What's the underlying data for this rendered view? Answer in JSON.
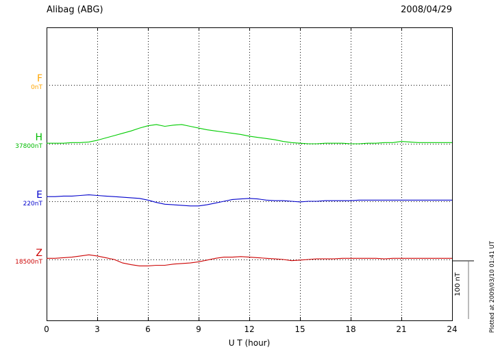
{
  "header": {
    "title": "Alibag (ABG)",
    "date": "2008/04/29"
  },
  "axes": {
    "x_label": "U T (hour)",
    "x_ticks": [
      "0",
      "3",
      "6",
      "9",
      "12",
      "15",
      "18",
      "21",
      "24"
    ]
  },
  "series": [
    {
      "key": "F",
      "label": "F",
      "baseline_label": "0nT",
      "color": "#ffa500"
    },
    {
      "key": "H",
      "label": "H",
      "baseline_label": "37800nT",
      "color": "#00cc00"
    },
    {
      "key": "E",
      "label": "E",
      "baseline_label": "220nT",
      "color": "#0000cc"
    },
    {
      "key": "Z",
      "label": "Z",
      "baseline_label": "18500nT",
      "color": "#cc0000"
    }
  ],
  "scale_bar": {
    "label": "100 nT",
    "value_nT": 100
  },
  "footer": {
    "plotted_at": "Plotted at 2009/03/10 01:41 UT"
  },
  "chart_data": {
    "type": "line",
    "title": "Alibag (ABG) magnetogram",
    "date": "2008/04/29",
    "xlabel": "U T (hour)",
    "x_range": [
      0,
      24
    ],
    "x_tick_interval_hours": 3,
    "x_step_hours": 0.5,
    "grid": "dotted",
    "scale_bar_nT": 100,
    "series": [
      {
        "name": "F",
        "baseline": "0nT",
        "color": "#ffa500",
        "offsets_nT": []
      },
      {
        "name": "H",
        "baseline": "37800nT",
        "color": "#00cc00",
        "offsets_nT": [
          1,
          1,
          1,
          2,
          2,
          3,
          6,
          10,
          14,
          18,
          22,
          27,
          31,
          33,
          30,
          32,
          33,
          30,
          27,
          24,
          22,
          20,
          18,
          16,
          13,
          11,
          9,
          7,
          4,
          2,
          1,
          0,
          0,
          1,
          1,
          1,
          0,
          0,
          1,
          1,
          2,
          2,
          4,
          3,
          2,
          2,
          2,
          2,
          2
        ]
      },
      {
        "name": "E",
        "baseline": "220nT",
        "color": "#0000cc",
        "offsets_nT": [
          8,
          8,
          9,
          9,
          10,
          11,
          10,
          9,
          8,
          7,
          6,
          5,
          2,
          -2,
          -5,
          -6,
          -7,
          -8,
          -8,
          -6,
          -3,
          0,
          3,
          4,
          5,
          4,
          2,
          1,
          1,
          0,
          -1,
          0,
          0,
          1,
          1,
          1,
          1,
          2,
          2,
          2,
          2,
          2,
          2,
          2,
          2,
          2,
          2,
          2,
          2
        ]
      },
      {
        "name": "Z",
        "baseline": "18500nT",
        "color": "#cc0000",
        "offsets_nT": [
          2,
          2,
          3,
          4,
          6,
          8,
          6,
          3,
          0,
          -6,
          -9,
          -11,
          -11,
          -10,
          -10,
          -8,
          -7,
          -6,
          -4,
          -1,
          2,
          4,
          4,
          5,
          4,
          3,
          2,
          1,
          0,
          -2,
          -1,
          0,
          1,
          1,
          1,
          2,
          2,
          2,
          2,
          2,
          1,
          2,
          2,
          2,
          2,
          2,
          2,
          2,
          2
        ]
      }
    ]
  }
}
